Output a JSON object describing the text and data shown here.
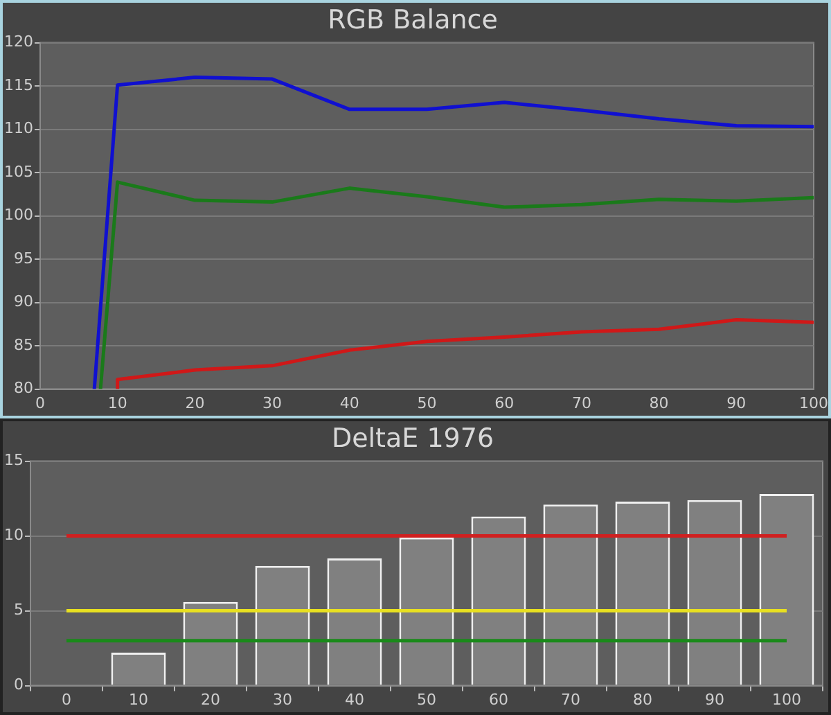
{
  "chart_data": [
    {
      "type": "line",
      "title": "RGB Balance",
      "xlim": [
        0,
        100
      ],
      "xticks": [
        0,
        10,
        20,
        30,
        40,
        50,
        60,
        70,
        80,
        90,
        100
      ],
      "ylim": [
        80,
        120
      ],
      "yticks": [
        80,
        85,
        90,
        95,
        100,
        105,
        110,
        115,
        120
      ],
      "grid": "y",
      "legend": false,
      "marker": "none",
      "line_style": "solid",
      "series": [
        {
          "color": "#1010d0",
          "x": [
            7,
            10,
            20,
            30,
            40,
            50,
            60,
            70,
            80,
            90,
            100
          ],
          "values": [
            80,
            115.1,
            116,
            115.8,
            112.3,
            112.3,
            113.1,
            112.2,
            111.2,
            110.4,
            110.3
          ]
        },
        {
          "color": "#1a7a1a",
          "x": [
            7.8,
            10,
            20,
            30,
            40,
            50,
            60,
            70,
            80,
            90,
            100
          ],
          "values": [
            80,
            103.9,
            101.8,
            101.6,
            103.2,
            102.2,
            101.0,
            101.3,
            101.9,
            101.7,
            102.1
          ]
        },
        {
          "color": "#d01818",
          "x": [
            10,
            10,
            20,
            30,
            40,
            50,
            60,
            70,
            80,
            90,
            100
          ],
          "values": [
            80,
            81.1,
            82.2,
            82.7,
            84.5,
            85.5,
            86.0,
            86.6,
            86.9,
            88.0,
            87.7
          ]
        }
      ]
    },
    {
      "type": "bar",
      "title": "DeltaE 1976",
      "categories": [
        "0",
        "10",
        "20",
        "30",
        "40",
        "50",
        "60",
        "70",
        "80",
        "90",
        "100"
      ],
      "values": [
        null,
        2.2,
        5.6,
        8.0,
        8.5,
        9.9,
        11.3,
        12.1,
        12.3,
        12.4,
        12.8
      ],
      "color": "#808080",
      "ylim": [
        0,
        15
      ],
      "yticks": [
        0,
        5,
        10,
        15
      ],
      "grid": "y",
      "legend": false,
      "ref_lines": [
        {
          "axis": "y",
          "value": 10,
          "color": "#d02020"
        },
        {
          "axis": "y",
          "value": 5,
          "color": "#e8e020"
        },
        {
          "axis": "y",
          "value": 3,
          "color": "#1a8a1a"
        }
      ]
    }
  ]
}
